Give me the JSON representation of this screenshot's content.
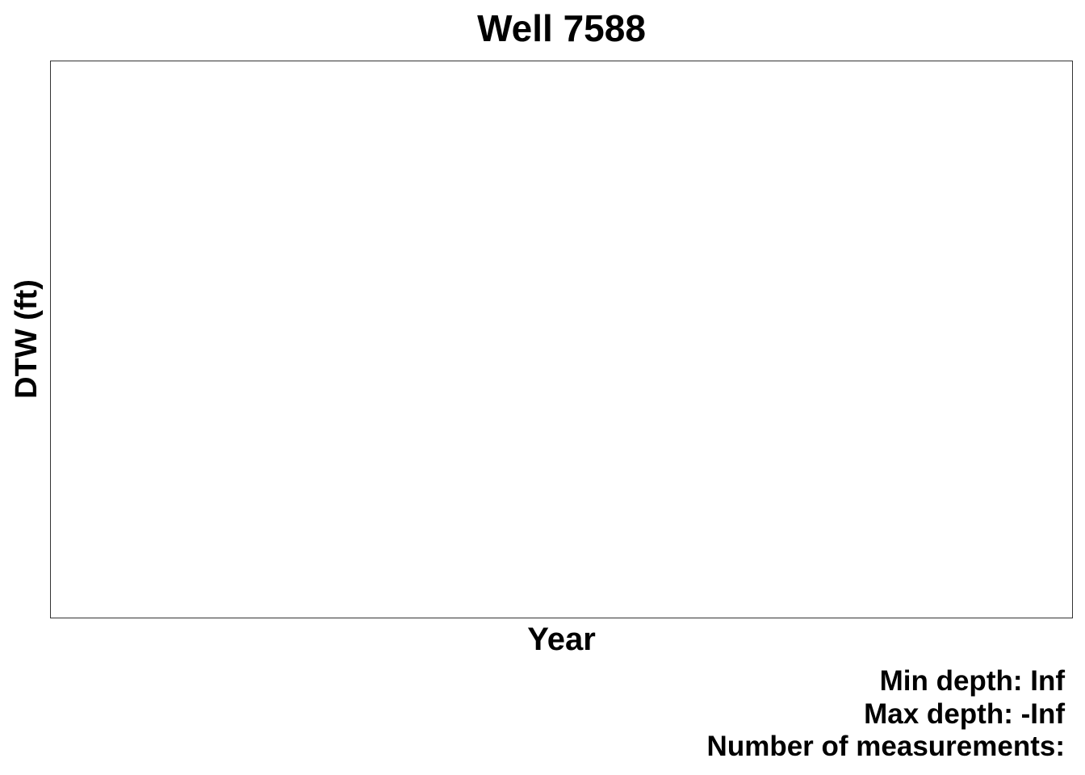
{
  "chart_data": {
    "type": "line",
    "title": "Well 7588",
    "xlabel": "Year",
    "ylabel": "DTW (ft)",
    "series": [],
    "grid": false,
    "caption": {
      "min_depth": "Min depth: Inf",
      "max_depth": "Max depth: -Inf",
      "num_measurements": "Number of measurements:"
    }
  }
}
